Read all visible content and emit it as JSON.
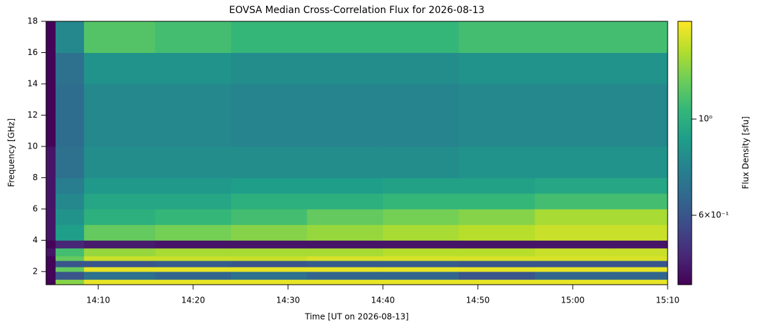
{
  "chart_data": {
    "type": "heatmap",
    "title": "EOVSA Median Cross-Correlation Flux for 2026-08-13",
    "xlabel": "Time [UT on 2026-08-13]",
    "ylabel": "Frequency [GHz]",
    "colorbar_label": "Flux Density [sfu]",
    "colormap": "viridis",
    "x_edges": [
      844.5,
      845.5,
      848.5,
      856,
      864,
      872,
      880,
      888,
      896,
      904,
      910
    ],
    "y_edges": [
      1.16,
      1.5,
      2.0,
      2.3,
      2.7,
      3.0,
      3.5,
      4.0,
      5.0,
      6.0,
      7.0,
      8.0,
      10.0,
      12.0,
      14.0,
      16.0,
      18.0
    ],
    "z": [
      [
        0.42,
        1.3,
        1.6,
        1.6,
        1.6,
        1.6,
        1.6,
        1.6,
        1.6,
        1.6
      ],
      [
        0.42,
        0.6,
        0.7,
        0.65,
        0.7,
        0.65,
        0.65,
        0.6,
        0.65,
        0.65
      ],
      [
        0.42,
        1.2,
        1.6,
        1.6,
        1.6,
        1.6,
        1.6,
        1.6,
        1.6,
        1.6
      ],
      [
        0.42,
        0.6,
        0.6,
        0.62,
        0.6,
        0.62,
        0.62,
        0.6,
        0.6,
        0.6
      ],
      [
        0.42,
        1.2,
        1.5,
        1.5,
        1.5,
        1.55,
        1.55,
        1.55,
        1.55,
        1.55
      ],
      [
        0.45,
        1.1,
        1.35,
        1.4,
        1.4,
        1.4,
        1.45,
        1.45,
        1.5,
        1.5
      ],
      [
        0.42,
        0.48,
        0.46,
        0.45,
        0.45,
        0.45,
        0.45,
        0.45,
        0.45,
        0.45
      ],
      [
        0.45,
        0.9,
        1.2,
        1.25,
        1.3,
        1.35,
        1.4,
        1.45,
        1.5,
        1.5
      ],
      [
        0.45,
        0.85,
        1.0,
        1.05,
        1.1,
        1.2,
        1.25,
        1.3,
        1.4,
        1.4
      ],
      [
        0.45,
        0.8,
        0.95,
        0.95,
        1.0,
        1.0,
        1.05,
        1.05,
        1.1,
        1.1
      ],
      [
        0.45,
        0.75,
        0.88,
        0.88,
        0.9,
        0.9,
        0.92,
        0.92,
        0.95,
        0.95
      ],
      [
        0.45,
        0.7,
        0.82,
        0.82,
        0.82,
        0.82,
        0.82,
        0.85,
        0.85,
        0.85
      ],
      [
        0.42,
        0.68,
        0.8,
        0.8,
        0.78,
        0.78,
        0.78,
        0.8,
        0.8,
        0.8
      ],
      [
        0.42,
        0.68,
        0.8,
        0.8,
        0.78,
        0.78,
        0.78,
        0.8,
        0.8,
        0.8
      ],
      [
        0.42,
        0.7,
        0.85,
        0.85,
        0.82,
        0.82,
        0.82,
        0.85,
        0.85,
        0.85
      ],
      [
        0.42,
        0.8,
        1.15,
        1.1,
        1.05,
        1.05,
        1.05,
        1.1,
        1.1,
        1.1
      ]
    ],
    "xlim": [
      844.5,
      910
    ],
    "xticks": [
      {
        "value": 850,
        "label": "14:10"
      },
      {
        "value": 860,
        "label": "14:20"
      },
      {
        "value": 870,
        "label": "14:30"
      },
      {
        "value": 880,
        "label": "14:40"
      },
      {
        "value": 890,
        "label": "14:50"
      },
      {
        "value": 900,
        "label": "15:00"
      },
      {
        "value": 910,
        "label": "15:10"
      }
    ],
    "ylim": [
      1.16,
      18
    ],
    "yticks": [
      2,
      4,
      6,
      8,
      10,
      12,
      14,
      16,
      18
    ],
    "zscale": "log",
    "zlim": [
      0.415,
      1.68
    ],
    "zticks": [
      {
        "value": 0.6,
        "label": "6×10⁻¹"
      },
      {
        "value": 1,
        "label": "10⁰"
      }
    ]
  }
}
